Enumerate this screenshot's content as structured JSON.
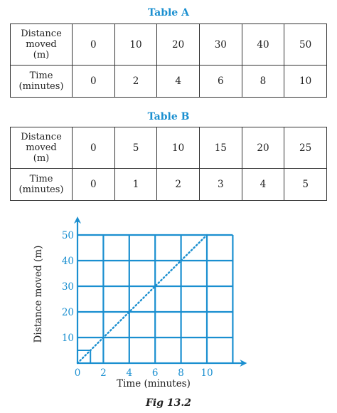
{
  "table_a": {
    "title": "Table A",
    "row1_header": [
      "Distance",
      "moved",
      "(m)"
    ],
    "row1_values": [
      "0",
      "10",
      "20",
      "30",
      "40",
      "50"
    ],
    "row2_header": [
      "Time",
      "(minutes)"
    ],
    "row2_values": [
      "0",
      "2",
      "4",
      "6",
      "8",
      "10"
    ]
  },
  "table_b": {
    "title": "Table B",
    "row1_header": [
      "Distance",
      "moved",
      "(m)"
    ],
    "row1_values": [
      "0",
      "5",
      "10",
      "15",
      "20",
      "25"
    ],
    "row2_header": [
      "Time",
      "(minutes)"
    ],
    "row2_values": [
      "0",
      "1",
      "2",
      "3",
      "4",
      "5"
    ]
  },
  "chart_data": {
    "type": "line",
    "title": "",
    "xlabel": "Time (minutes)",
    "ylabel": "Distance moved (m)",
    "x_ticks": [
      "0",
      "2",
      "4",
      "6",
      "8",
      "10"
    ],
    "y_ticks": [
      "10",
      "20",
      "30",
      "40",
      "50"
    ],
    "xlim": [
      0,
      12
    ],
    "ylim": [
      0,
      50
    ],
    "grid": true,
    "series": [
      {
        "x": [
          0,
          2,
          4,
          6,
          8,
          10
        ],
        "y": [
          0,
          10,
          20,
          30,
          40,
          50
        ],
        "style": "dotted"
      }
    ],
    "colors": {
      "grid": "#1a8fd0",
      "line": "#1a8fd0",
      "tick_text": "#1a8fd0",
      "label_text": "#222222"
    }
  },
  "caption": "Fig 13.2"
}
